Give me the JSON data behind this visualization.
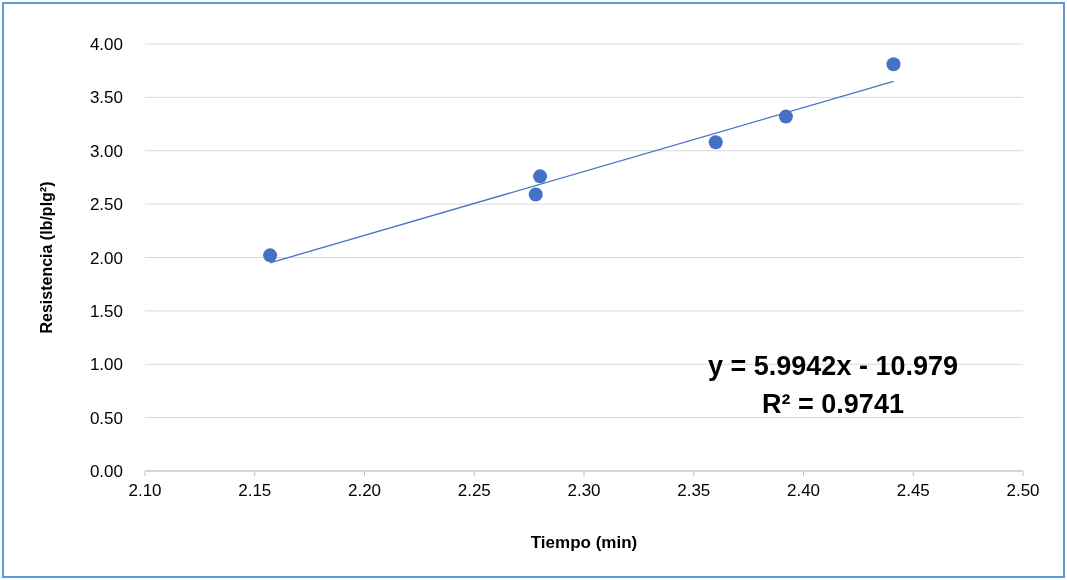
{
  "chart_data": {
    "type": "scatter",
    "xlabel": "Tiempo (min)",
    "ylabel": "Resistencia (lb/plg²)",
    "x": [
      2.157,
      2.278,
      2.28,
      2.36,
      2.392,
      2.441
    ],
    "series": [
      {
        "color": "#4472c4",
        "values": [
          2.02,
          2.59,
          2.76,
          3.08,
          3.32,
          3.81
        ],
        "marker": "circle"
      },
      {
        "type": "line",
        "color": "#4472c4",
        "x": [
          2.157,
          2.441
        ],
        "values": [
          1.95,
          3.65
        ],
        "line_style": "solid",
        "marker": "none"
      }
    ],
    "xlim": [
      2.1,
      2.5
    ],
    "xticks": [
      {
        "value": 2.1,
        "label": "2.10"
      },
      {
        "value": 2.15,
        "label": "2.15"
      },
      {
        "value": 2.2,
        "label": "2.20"
      },
      {
        "value": 2.25,
        "label": "2.25"
      },
      {
        "value": 2.3,
        "label": "2.30"
      },
      {
        "value": 2.35,
        "label": "2.35"
      },
      {
        "value": 2.4,
        "label": "2.40"
      },
      {
        "value": 2.45,
        "label": "2.45"
      },
      {
        "value": 2.5,
        "label": "2.50"
      }
    ],
    "ylim": [
      0,
      4
    ],
    "yticks": [
      {
        "value": 0,
        "label": "0.00"
      },
      {
        "value": 0.5,
        "label": "0.50"
      },
      {
        "value": 1,
        "label": "1.00"
      },
      {
        "value": 1.5,
        "label": "1.50"
      },
      {
        "value": 2,
        "label": "2.00"
      },
      {
        "value": 2.5,
        "label": "2.50"
      },
      {
        "value": 3,
        "label": "3.00"
      },
      {
        "value": 3.5,
        "label": "3.50"
      },
      {
        "value": 4,
        "label": "4.00"
      }
    ],
    "grid": "y",
    "annotations": [
      "y = 5.9942x - 10.979",
      "R² = 0.9741"
    ]
  }
}
